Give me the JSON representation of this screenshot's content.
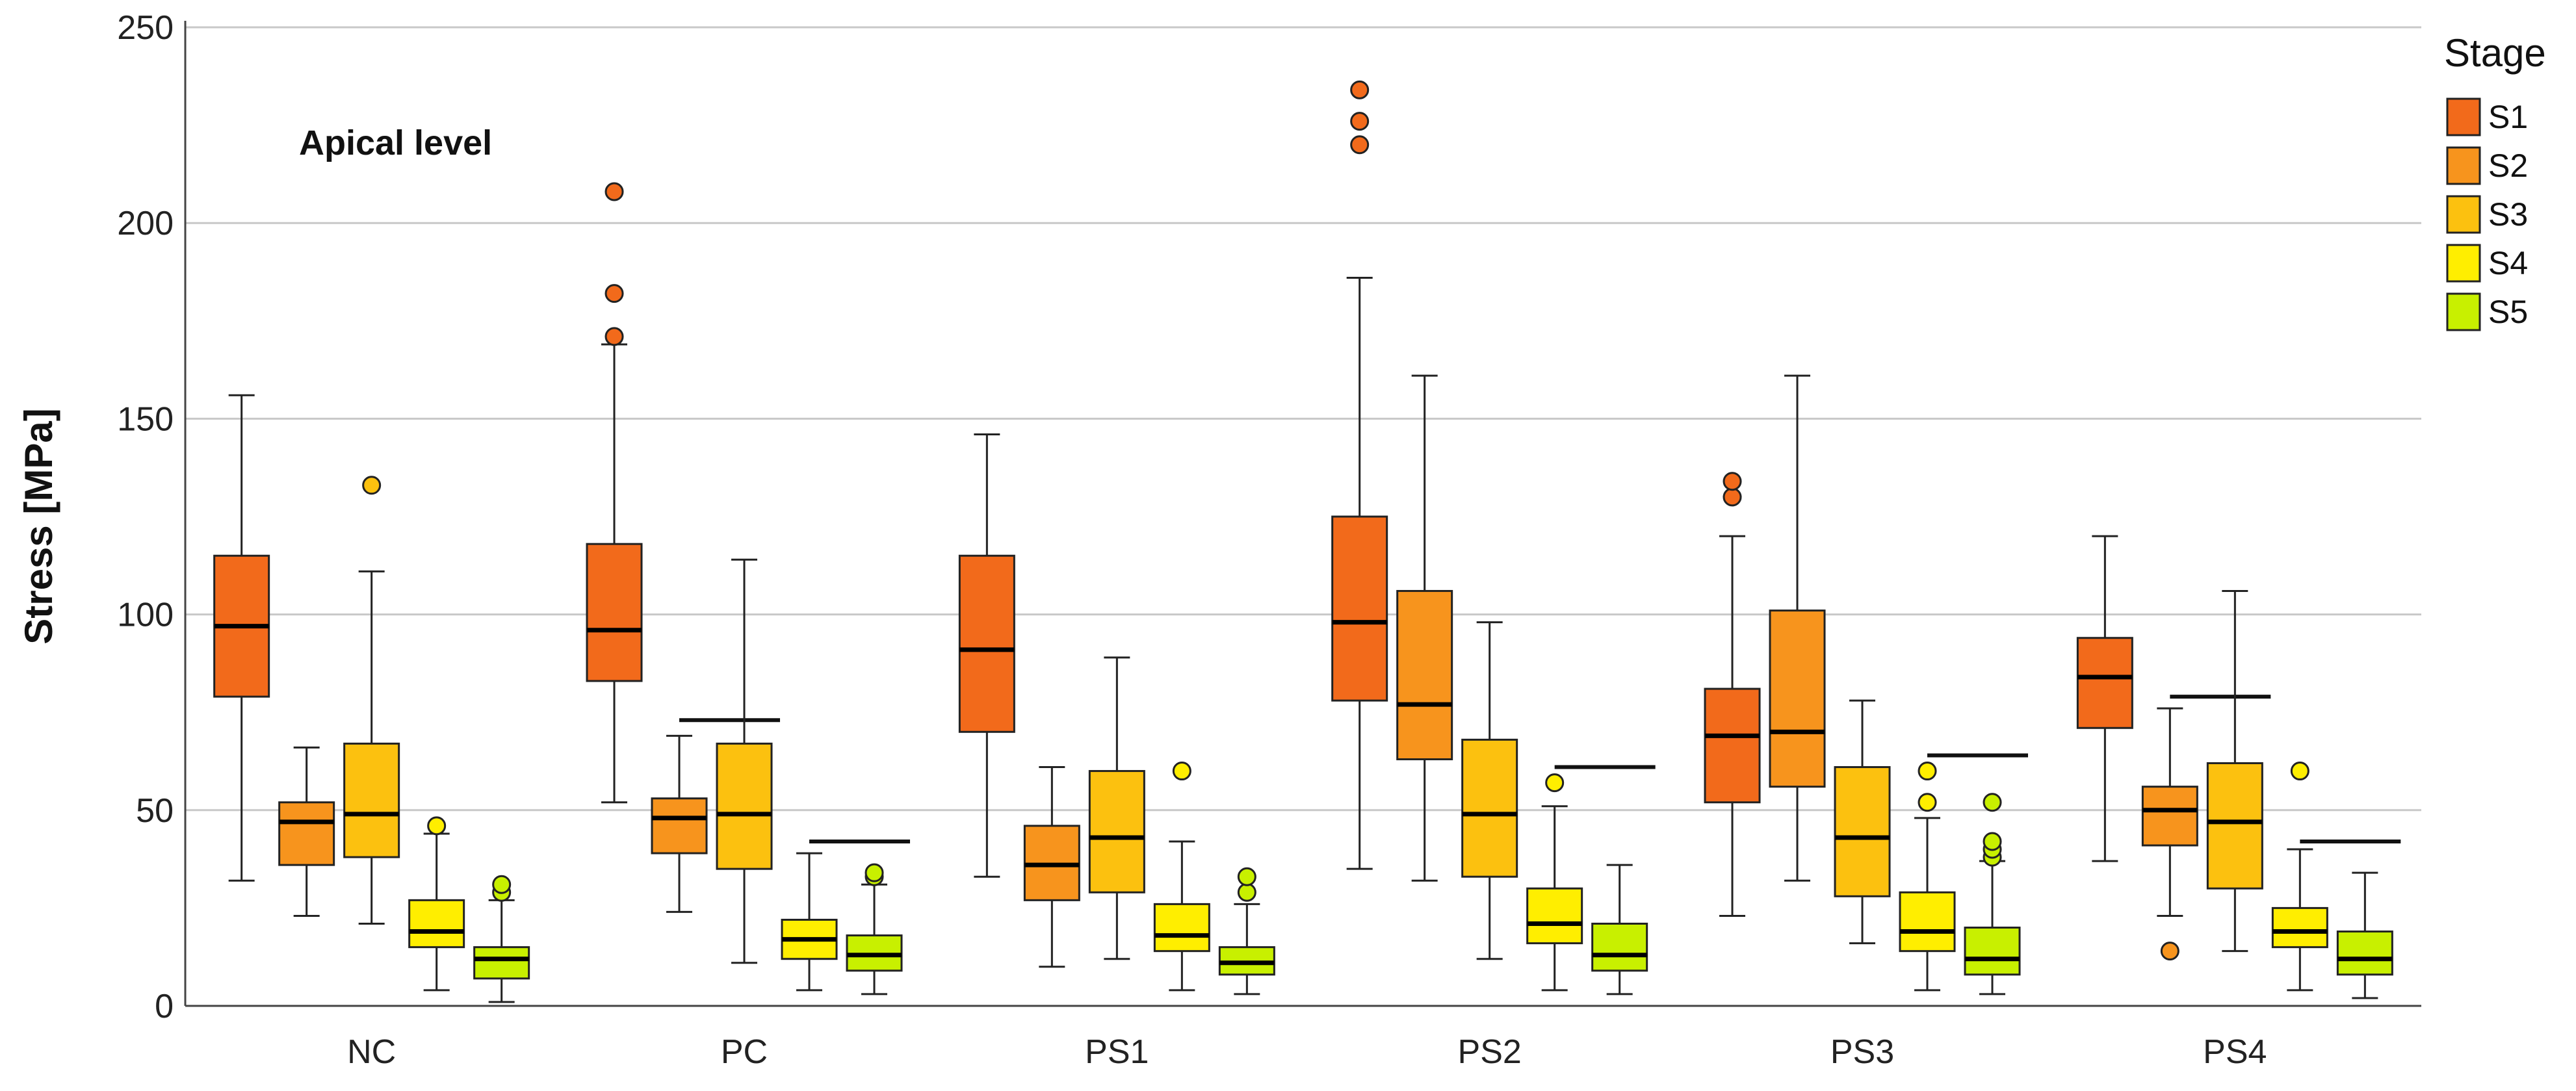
{
  "chart_data": {
    "type": "boxplot",
    "title": "",
    "xlabel": "",
    "ylabel": "Stress [MPa]",
    "ylim": [
      0,
      250
    ],
    "yticks": [
      0,
      50,
      100,
      150,
      200,
      250
    ],
    "grid": "horizontal",
    "annotation": "Apical level",
    "legend": {
      "title": "Stage",
      "placement": "right"
    },
    "categories": [
      "NC",
      "PC",
      "PS1",
      "PS2",
      "PS3",
      "PS4"
    ],
    "series": [
      {
        "name": "S1",
        "color": "#f26a1b",
        "boxes": [
          {
            "min": 32,
            "q1": 79,
            "median": 97,
            "q3": 115,
            "max": 156,
            "outliers": []
          },
          {
            "min": 52,
            "q1": 83,
            "median": 96,
            "q3": 118,
            "max": 169,
            "outliers": [
              171,
              182,
              208
            ]
          },
          {
            "min": 33,
            "q1": 70,
            "median": 91,
            "q3": 115,
            "max": 146,
            "outliers": []
          },
          {
            "min": 35,
            "q1": 78,
            "median": 98,
            "q3": 125,
            "max": 186,
            "outliers": [
              220,
              226,
              234
            ]
          },
          {
            "min": 23,
            "q1": 52,
            "median": 69,
            "q3": 81,
            "max": 120,
            "outliers": [
              130,
              134
            ]
          },
          {
            "min": 37,
            "q1": 71,
            "median": 84,
            "q3": 94,
            "max": 120,
            "outliers": []
          }
        ]
      },
      {
        "name": "S2",
        "color": "#f7941d",
        "boxes": [
          {
            "min": 23,
            "q1": 36,
            "median": 47,
            "q3": 52,
            "max": 66,
            "outliers": []
          },
          {
            "min": 24,
            "q1": 39,
            "median": 48,
            "q3": 53,
            "max": 69,
            "outliers": []
          },
          {
            "min": 10,
            "q1": 27,
            "median": 36,
            "q3": 46,
            "max": 61,
            "outliers": []
          },
          {
            "min": 32,
            "q1": 63,
            "median": 77,
            "q3": 106,
            "max": 161,
            "outliers": []
          },
          {
            "min": 32,
            "q1": 56,
            "median": 70,
            "q3": 101,
            "max": 161,
            "outliers": []
          },
          {
            "min": 23,
            "q1": 41,
            "median": 50,
            "q3": 56,
            "max": 76,
            "outliers": [
              14
            ]
          }
        ]
      },
      {
        "name": "S3",
        "color": "#fcc10f",
        "boxes": [
          {
            "min": 21,
            "q1": 38,
            "median": 49,
            "q3": 67,
            "max": 111,
            "outliers": [
              133
            ]
          },
          {
            "min": 11,
            "q1": 35,
            "median": 49,
            "q3": 67,
            "max": 114,
            "outliers": []
          },
          {
            "min": 12,
            "q1": 29,
            "median": 43,
            "q3": 60,
            "max": 89,
            "outliers": []
          },
          {
            "min": 12,
            "q1": 33,
            "median": 49,
            "q3": 68,
            "max": 98,
            "outliers": []
          },
          {
            "min": 16,
            "q1": 28,
            "median": 43,
            "q3": 61,
            "max": 78,
            "outliers": []
          },
          {
            "min": 14,
            "q1": 30,
            "median": 47,
            "q3": 62,
            "max": 106,
            "outliers": []
          }
        ]
      },
      {
        "name": "S4",
        "color": "#ffee00",
        "boxes": [
          {
            "min": 4,
            "q1": 15,
            "median": 19,
            "q3": 27,
            "max": 44,
            "outliers": [
              46
            ]
          },
          {
            "min": 4,
            "q1": 12,
            "median": 17,
            "q3": 22,
            "max": 39,
            "outliers": []
          },
          {
            "min": 4,
            "q1": 14,
            "median": 18,
            "q3": 26,
            "max": 42,
            "outliers": [
              60
            ]
          },
          {
            "min": 4,
            "q1": 16,
            "median": 21,
            "q3": 30,
            "max": 51,
            "outliers": [
              57
            ]
          },
          {
            "min": 4,
            "q1": 14,
            "median": 19,
            "q3": 29,
            "max": 48,
            "outliers": [
              52,
              60
            ]
          },
          {
            "min": 4,
            "q1": 15,
            "median": 19,
            "q3": 25,
            "max": 40,
            "outliers": [
              60
            ]
          }
        ]
      },
      {
        "name": "S5",
        "color": "#c8f000",
        "boxes": [
          {
            "min": 1,
            "q1": 7,
            "median": 12,
            "q3": 15,
            "max": 27,
            "outliers": [
              29,
              31
            ]
          },
          {
            "min": 3,
            "q1": 9,
            "median": 13,
            "q3": 18,
            "max": 31,
            "outliers": [
              33,
              34
            ]
          },
          {
            "min": 3,
            "q1": 8,
            "median": 11,
            "q3": 15,
            "max": 26,
            "outliers": [
              29,
              33
            ]
          },
          {
            "min": 3,
            "q1": 9,
            "median": 13,
            "q3": 21,
            "max": 36,
            "outliers": []
          },
          {
            "min": 3,
            "q1": 8,
            "median": 12,
            "q3": 20,
            "max": 37,
            "outliers": [
              38,
              40,
              42,
              52
            ]
          },
          {
            "min": 2,
            "q1": 8,
            "median": 12,
            "q3": 19,
            "max": 34,
            "outliers": []
          }
        ]
      }
    ],
    "reference_lines": [
      {
        "category": "PC",
        "value": 73,
        "from_series": "S2",
        "to_series": "S3"
      },
      {
        "category": "PC",
        "value": 42,
        "from_series": "S4",
        "to_series": "S5"
      },
      {
        "category": "PS2",
        "value": 61,
        "from_series": "S4",
        "to_series": "S5"
      },
      {
        "category": "PS3",
        "value": 64,
        "from_series": "S4",
        "to_series": "S5"
      },
      {
        "category": "PS4",
        "value": 79,
        "from_series": "S2",
        "to_series": "S3"
      },
      {
        "category": "PS4",
        "value": 42,
        "from_series": "S4",
        "to_series": "S5"
      }
    ]
  }
}
